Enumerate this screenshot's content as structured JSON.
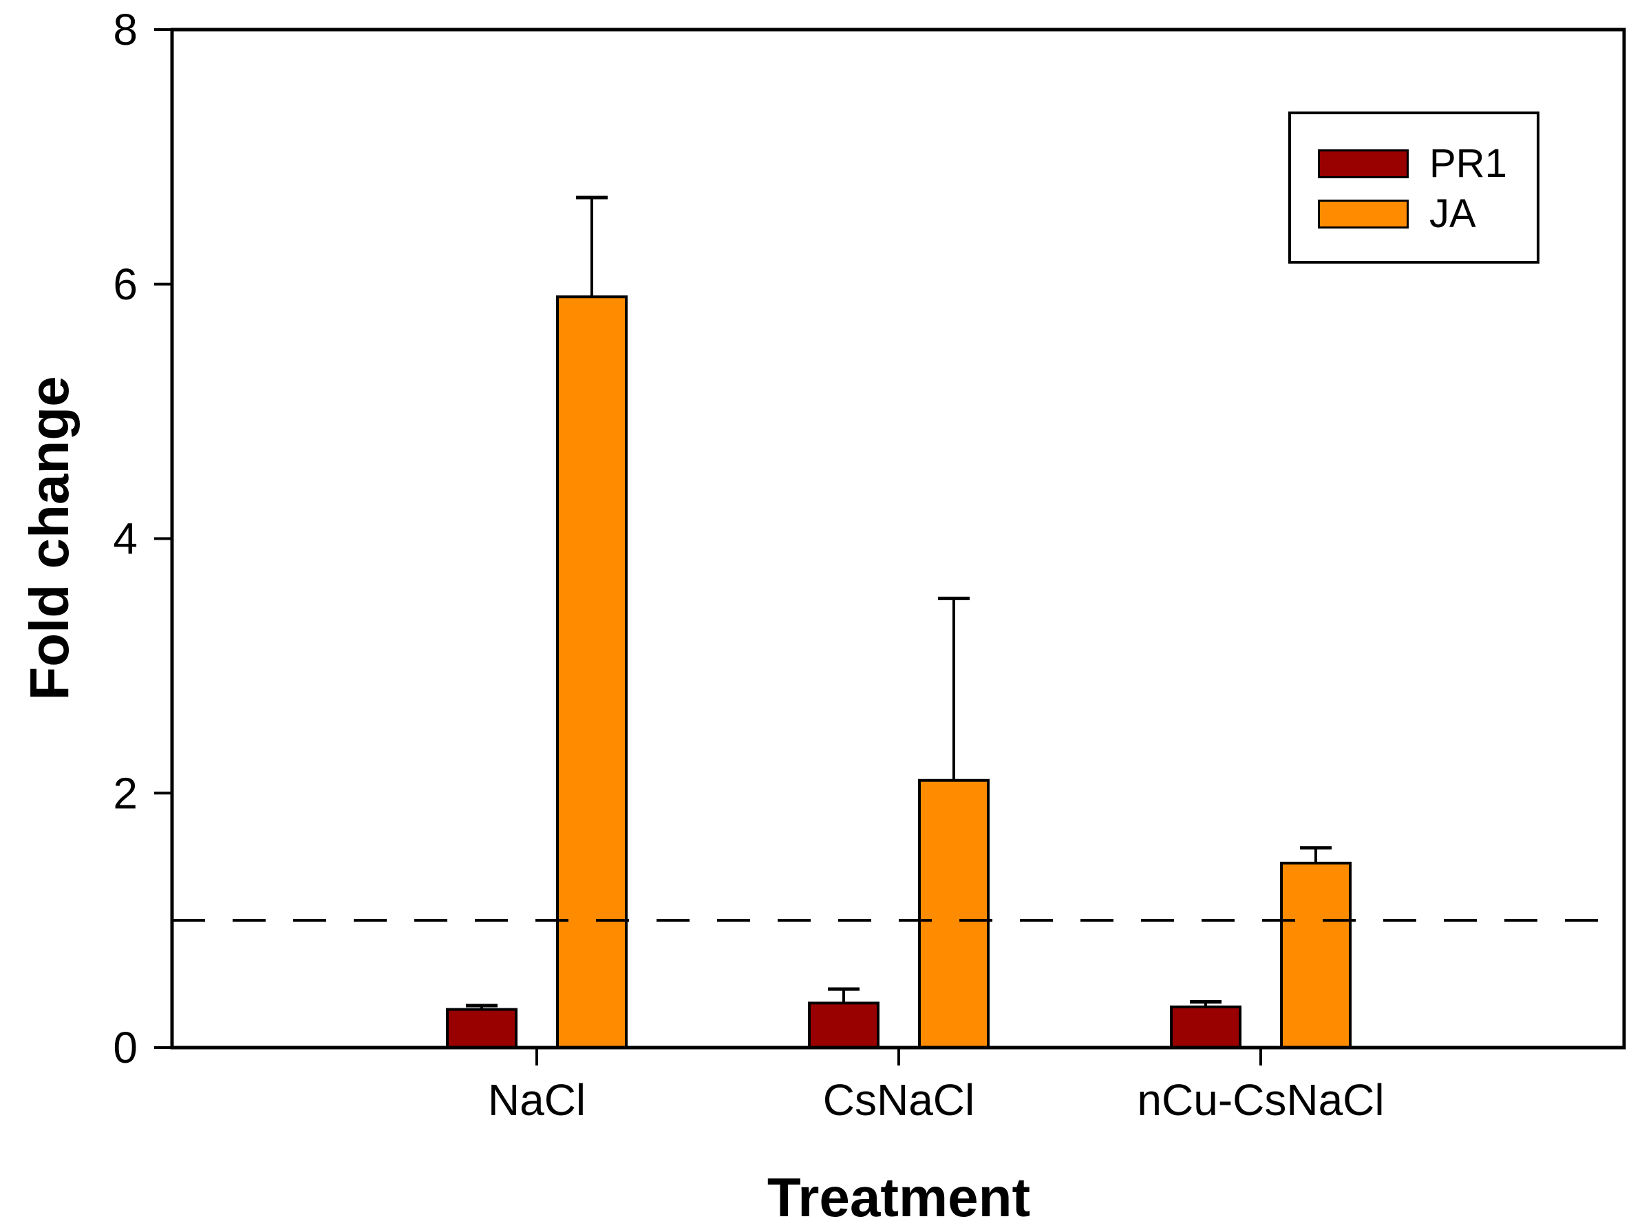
{
  "figure": {
    "background": "#ffffff"
  },
  "chart_data": {
    "type": "bar",
    "title": "",
    "xlabel": "Treatment",
    "ylabel": "Fold change",
    "categories": [
      "NaCl",
      "CsNaCl",
      "nCu-CsNaCl"
    ],
    "series": [
      {
        "name": "PR1",
        "color": "#990000",
        "values": [
          0.3,
          0.35,
          0.32
        ],
        "errors": [
          0.03,
          0.11,
          0.04
        ]
      },
      {
        "name": "JA",
        "color": "#FF8C00",
        "values": [
          5.9,
          2.1,
          1.45
        ],
        "errors": [
          0.78,
          1.43,
          0.12
        ]
      }
    ],
    "error_bars": "upper only, black line with cap",
    "reference_line": {
      "y": 1,
      "style": "dashed",
      "color": "#000000"
    },
    "ylim": [
      0,
      8
    ],
    "yticks": [
      0,
      2,
      4,
      6,
      8
    ],
    "grid": false,
    "legend_position": "top-right inside plot",
    "axis_color": "#000000",
    "text_color": "#000000"
  }
}
